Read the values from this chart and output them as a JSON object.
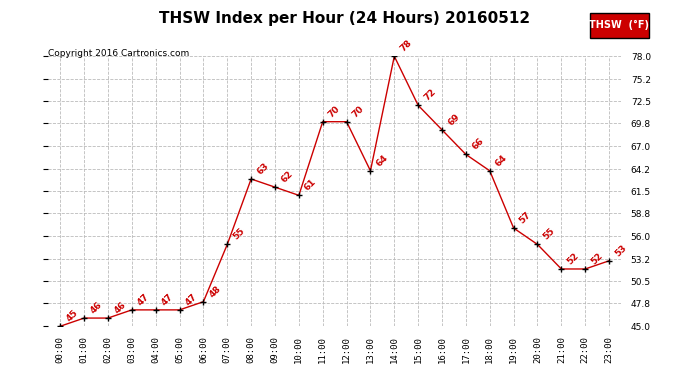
{
  "title": "THSW Index per Hour (24 Hours) 20160512",
  "copyright": "Copyright 2016 Cartronics.com",
  "legend_label": "THSW  (°F)",
  "hours": [
    0,
    1,
    2,
    3,
    4,
    5,
    6,
    7,
    8,
    9,
    10,
    11,
    12,
    13,
    14,
    15,
    16,
    17,
    18,
    19,
    20,
    21,
    22,
    23
  ],
  "values": [
    45,
    46,
    46,
    47,
    47,
    47,
    48,
    55,
    63,
    62,
    61,
    70,
    70,
    64,
    78,
    72,
    69,
    66,
    64,
    57,
    55,
    52,
    52,
    53
  ],
  "x_labels": [
    "00:00",
    "01:00",
    "02:00",
    "03:00",
    "04:00",
    "05:00",
    "06:00",
    "07:00",
    "08:00",
    "09:00",
    "10:00",
    "11:00",
    "12:00",
    "13:00",
    "14:00",
    "15:00",
    "16:00",
    "17:00",
    "18:00",
    "19:00",
    "20:00",
    "21:00",
    "22:00",
    "23:00"
  ],
  "ylim": [
    45.0,
    78.0
  ],
  "y_ticks": [
    45.0,
    47.8,
    50.5,
    53.2,
    56.0,
    58.8,
    61.5,
    64.2,
    67.0,
    69.8,
    72.5,
    75.2,
    78.0
  ],
  "line_color": "#cc0000",
  "marker_color": "#000000",
  "bg_color": "#ffffff",
  "grid_color": "#bbbbbb",
  "title_fontsize": 11,
  "label_fontsize": 6.5,
  "annotation_fontsize": 6.5,
  "copyright_fontsize": 6.5,
  "legend_bg": "#cc0000",
  "legend_text_color": "#ffffff"
}
